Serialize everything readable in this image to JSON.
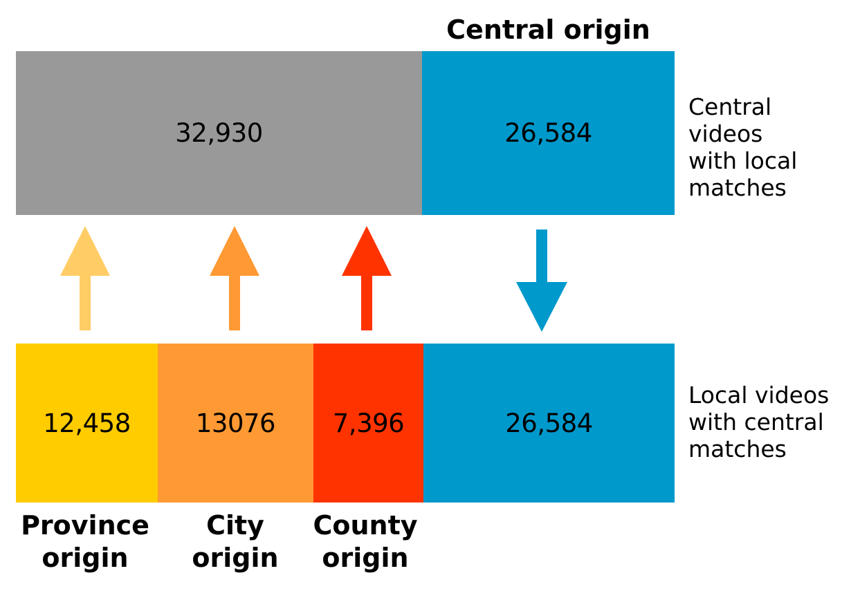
{
  "top_row": {
    "heading": "Central origin",
    "side_label": "Central videos\nwith local\nmatches",
    "segments": [
      {
        "value": "32,930",
        "color": "#999999"
      },
      {
        "value": "26,584",
        "color": "#0099CC"
      }
    ]
  },
  "bottom_row": {
    "side_label": "Local videos\nwith central\nmatches",
    "segments": [
      {
        "value": "12,458",
        "color": "#FFCC00",
        "label": "Province\norigin"
      },
      {
        "value": "13076",
        "color": "#FF9933",
        "label": "City\norigin"
      },
      {
        "value": "7,396",
        "color": "#FF3300",
        "label": "County\norigin"
      },
      {
        "value": "26,584",
        "color": "#0099CC"
      }
    ]
  },
  "arrows": [
    {
      "direction": "up",
      "color": "#FFCC66"
    },
    {
      "direction": "up",
      "color": "#FF9933"
    },
    {
      "direction": "up",
      "color": "#FF3300"
    },
    {
      "direction": "down",
      "color": "#0099CC"
    }
  ]
}
